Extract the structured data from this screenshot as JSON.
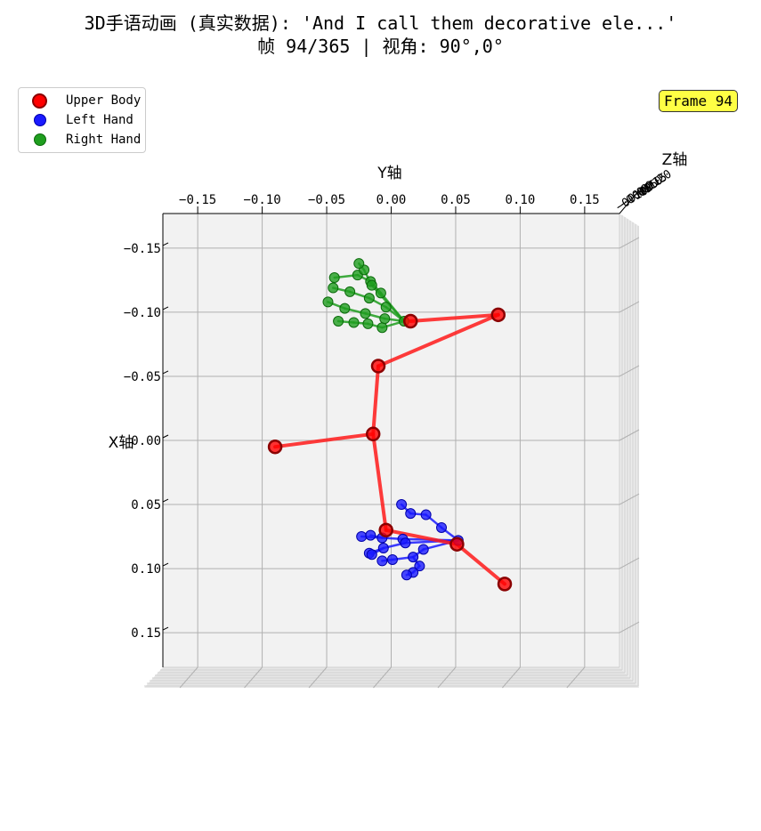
{
  "title": {
    "line1": "3D手语动画 (真实数据): 'And I call them decorative ele...'",
    "line2": "帧 94/365 | 视角: 90°,0°"
  },
  "frame_badge": "Frame 94",
  "legend": {
    "items": [
      {
        "label": "Upper Body",
        "color": "#ff0000",
        "edge": "#8b0000"
      },
      {
        "label": "Left Hand",
        "color": "#1a1aff",
        "edge": "#0000aa"
      },
      {
        "label": "Right Hand",
        "color": "#1f9e1f",
        "edge": "#0b6b0b"
      }
    ]
  },
  "chart_data": {
    "type": "scatter",
    "view": {
      "elev": 90,
      "azim": 0
    },
    "xlabel": "Y轴",
    "ylabel": "X轴",
    "zlabel": "Z轴",
    "x_ticks": [
      "−0.15",
      "−0.10",
      "−0.05",
      "0.00",
      "0.05",
      "0.10",
      "0.15"
    ],
    "x_tick_values": [
      -0.15,
      -0.1,
      -0.05,
      0.0,
      0.05,
      0.1,
      0.15
    ],
    "y_ticks": [
      "−0.15",
      "−0.10",
      "−0.05",
      "0.00",
      "0.05",
      "0.10",
      "0.15"
    ],
    "y_tick_values": [
      -0.15,
      -0.1,
      -0.05,
      0.0,
      0.05,
      0.1,
      0.15
    ],
    "z_ticks": [
      "0.20",
      "0.15",
      "0.10",
      "0.05",
      "0.00",
      "−0.05",
      "−0.10"
    ],
    "xlim": [
      -0.177,
      0.177
    ],
    "ylim": [
      -0.177,
      0.177
    ],
    "colors": {
      "body": "#ff0000",
      "body_line": "#ff1a1a",
      "left": "#1a1aff",
      "right": "#1f9e1f"
    },
    "series": [
      {
        "name": "Upper Body",
        "points": [
          [
            0.015,
            -0.093
          ],
          [
            0.083,
            -0.098
          ],
          [
            -0.01,
            -0.058
          ],
          [
            -0.09,
            0.005
          ],
          [
            -0.014,
            -0.005
          ],
          [
            -0.004,
            0.07
          ],
          [
            0.051,
            0.081
          ],
          [
            0.088,
            0.112
          ]
        ],
        "edges": [
          [
            0,
            1
          ],
          [
            1,
            2
          ],
          [
            2,
            4
          ],
          [
            3,
            4
          ],
          [
            4,
            5
          ],
          [
            5,
            6
          ],
          [
            6,
            7
          ]
        ]
      },
      {
        "name": "Left Hand",
        "points": [
          [
            0.052,
            0.078
          ],
          [
            0.039,
            0.068
          ],
          [
            0.027,
            0.058
          ],
          [
            0.015,
            0.057
          ],
          [
            0.008,
            0.05
          ],
          [
            0.009,
            0.077
          ],
          [
            -0.007,
            0.076
          ],
          [
            -0.023,
            0.075
          ],
          [
            -0.016,
            0.074
          ],
          [
            0.011,
            0.08
          ],
          [
            -0.006,
            0.084
          ],
          [
            -0.017,
            0.088
          ],
          [
            -0.015,
            0.089
          ],
          [
            0.025,
            0.085
          ],
          [
            0.017,
            0.091
          ],
          [
            0.001,
            0.093
          ],
          [
            -0.007,
            0.094
          ],
          [
            0.022,
            0.098
          ],
          [
            0.017,
            0.103
          ],
          [
            0.012,
            0.105
          ]
        ],
        "edges": [
          [
            0,
            1
          ],
          [
            1,
            2
          ],
          [
            2,
            3
          ],
          [
            3,
            4
          ],
          [
            0,
            5
          ],
          [
            5,
            6
          ],
          [
            6,
            7
          ],
          [
            6,
            8
          ],
          [
            0,
            9
          ],
          [
            9,
            10
          ],
          [
            10,
            11
          ],
          [
            10,
            12
          ],
          [
            0,
            13
          ],
          [
            13,
            14
          ],
          [
            14,
            15
          ],
          [
            15,
            16
          ],
          [
            14,
            17
          ],
          [
            17,
            18
          ],
          [
            18,
            19
          ]
        ]
      },
      {
        "name": "Right Hand",
        "points": [
          [
            0.01,
            -0.093
          ],
          [
            -0.007,
            -0.088
          ],
          [
            -0.018,
            -0.091
          ],
          [
            -0.029,
            -0.092
          ],
          [
            -0.041,
            -0.093
          ],
          [
            -0.005,
            -0.095
          ],
          [
            -0.02,
            -0.099
          ],
          [
            -0.036,
            -0.103
          ],
          [
            -0.049,
            -0.108
          ],
          [
            -0.004,
            -0.104
          ],
          [
            -0.017,
            -0.111
          ],
          [
            -0.032,
            -0.116
          ],
          [
            -0.045,
            -0.119
          ],
          [
            -0.008,
            -0.115
          ],
          [
            -0.016,
            -0.124
          ],
          [
            -0.026,
            -0.129
          ],
          [
            -0.044,
            -0.127
          ],
          [
            -0.015,
            -0.121
          ],
          [
            -0.021,
            -0.133
          ],
          [
            -0.025,
            -0.138
          ]
        ],
        "edges": [
          [
            0,
            1
          ],
          [
            1,
            2
          ],
          [
            2,
            3
          ],
          [
            3,
            4
          ],
          [
            0,
            5
          ],
          [
            5,
            6
          ],
          [
            6,
            7
          ],
          [
            7,
            8
          ],
          [
            0,
            9
          ],
          [
            9,
            10
          ],
          [
            10,
            11
          ],
          [
            11,
            12
          ],
          [
            0,
            13
          ],
          [
            13,
            14
          ],
          [
            14,
            15
          ],
          [
            15,
            16
          ],
          [
            0,
            17
          ],
          [
            17,
            18
          ],
          [
            18,
            19
          ]
        ]
      }
    ]
  }
}
